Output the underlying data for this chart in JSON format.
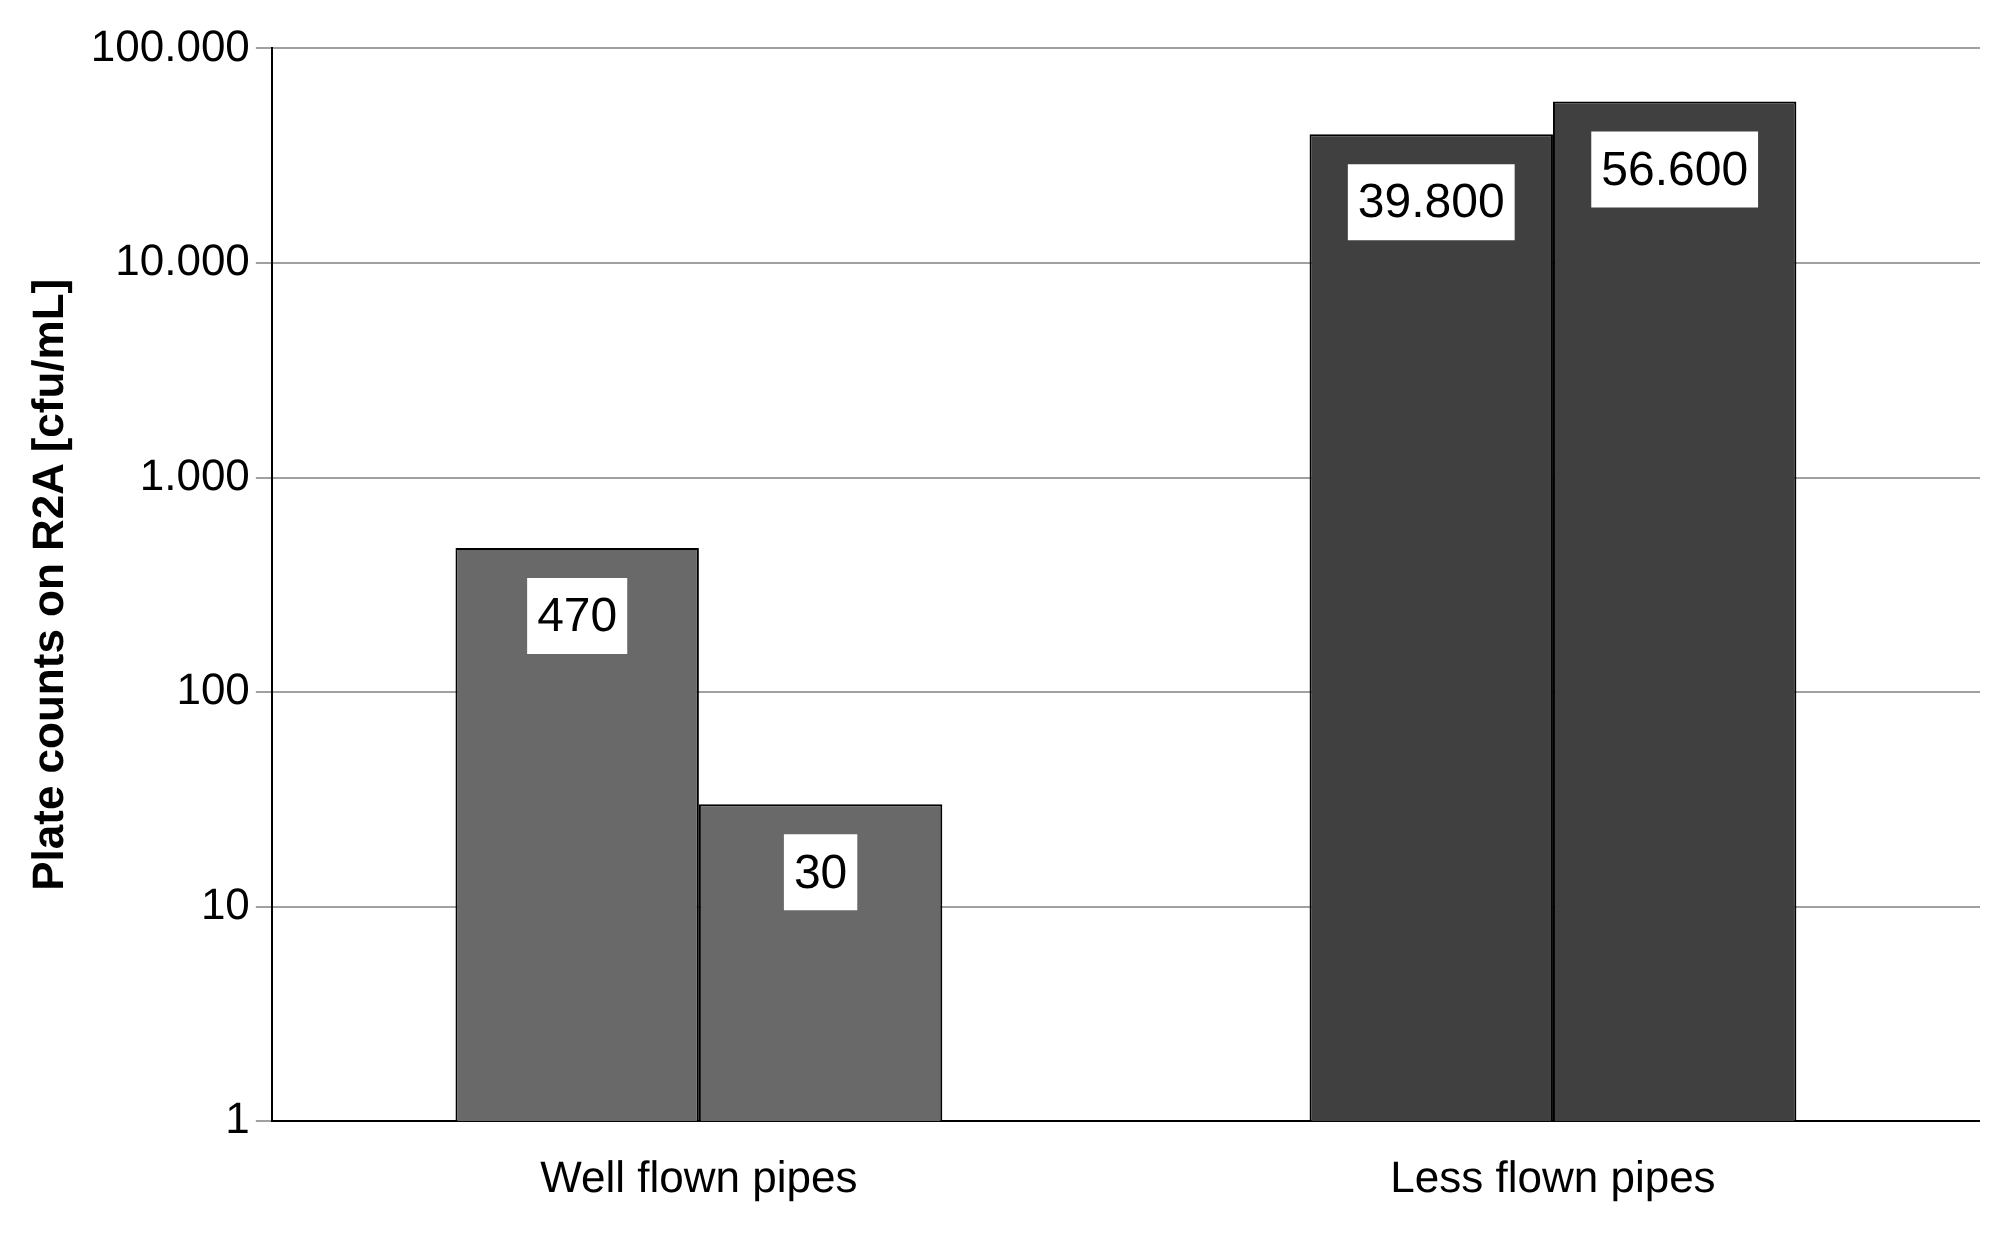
{
  "chart_data": {
    "type": "bar",
    "ylabel": "Plate counts on R2A [cfu/mL]",
    "categories": [
      "Well flown pipes",
      "Less flown pipes"
    ],
    "series": [
      {
        "colors": [
          "#696969",
          "#404040"
        ],
        "values": [
          470,
          39800
        ],
        "value_labels": [
          "470",
          "39.800"
        ]
      },
      {
        "colors": [
          "#696969",
          "#404040"
        ],
        "values": [
          30,
          56600
        ],
        "value_labels": [
          "30",
          "56.600"
        ]
      }
    ],
    "log": true,
    "ylim": [
      1,
      100000
    ],
    "yticks": [
      1,
      10,
      100,
      {
        "value": 1000,
        "label": "1.000"
      },
      {
        "value": 10000,
        "label": "10.000"
      },
      {
        "value": 100000,
        "label": "100.000"
      }
    ],
    "grid": "y",
    "legend": false
  }
}
